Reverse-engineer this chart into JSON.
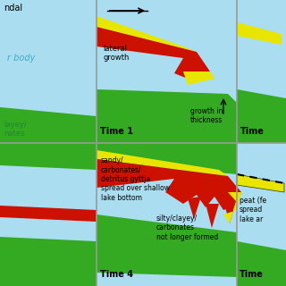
{
  "background": "#ffffff",
  "grid_color": "#999999",
  "light_blue": "#aaddef",
  "yellow": "#e8e600",
  "red": "#cc1100",
  "green": "#33aa22",
  "cyan_text": "#44aacc",
  "panels": {
    "vline1": 108,
    "vline2": 265,
    "hline": 160
  },
  "top_left": {
    "title": "ndal",
    "body_label": "r body",
    "clayey_label": "layey/\nnates"
  },
  "top_center": {
    "arrow_label": "",
    "lateral_growth": "lateral\ngrowth",
    "time_label": "Time 1",
    "growth_thickness": "growth in\nthickness"
  },
  "top_right": {
    "time_label": "Time"
  },
  "bottom_left": {},
  "bottom_center": {
    "sandy_label": "sandy/\ncarbonates/\ndetritus gyttja\nspread over shallow\nlake bottom",
    "silty_label": "silty/clayey/\ncarbonates\nnot longer formed",
    "time_label": "Time 4"
  },
  "bottom_right": {
    "peat_label": "peat (fe\nspread\nlake ar",
    "time_label": "Time"
  }
}
